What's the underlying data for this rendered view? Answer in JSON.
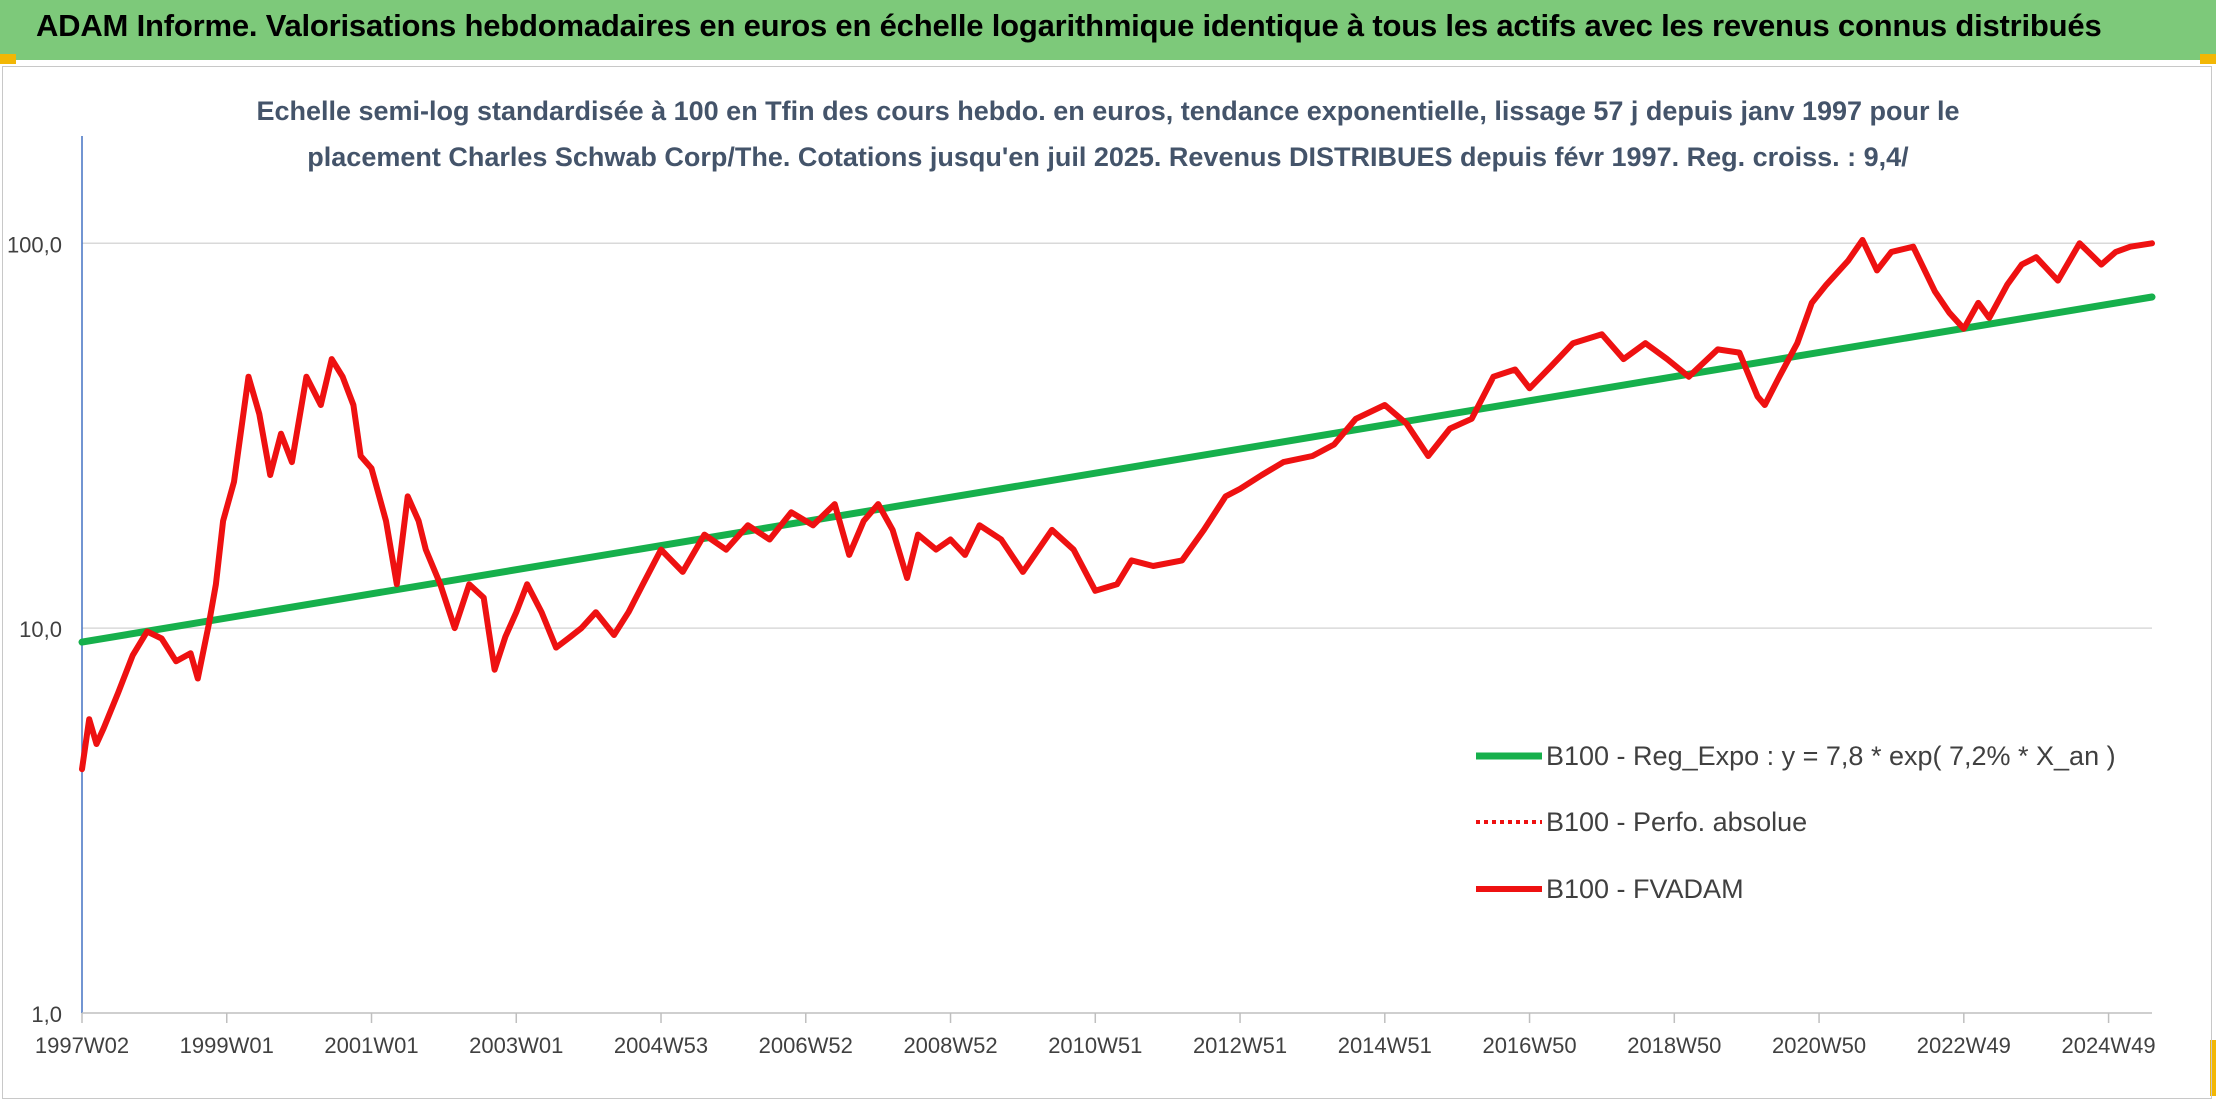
{
  "header": {
    "title": "ADAM Informe. Valorisations hebdomadaires en euros en échelle logarithmique identique à tous les actifs avec les revenus connus distribués"
  },
  "colors": {
    "banner": "#7dc97a",
    "accent_corner": "#f2b705",
    "regression": "#16b04c",
    "series": "#ee1111",
    "subtitle": "#44546a"
  },
  "chart_data": {
    "type": "line",
    "title_line1": "Echelle semi-log standardisée à 100 en Tfin des cours hebdo. en euros, tendance exponentielle, lissage 57 j depuis janv 1997 pour le",
    "title_line2": "placement Charles Schwab Corp/The. Cotations jusqu'en juil 2025. Revenus DISTRIBUES depuis févr 1997. Reg. croiss. : 9,4/",
    "y_scale": "log",
    "ylim": [
      1,
      190
    ],
    "y_ticks": [
      1,
      10,
      100
    ],
    "y_tick_labels": [
      "1,0",
      "10,0",
      "100,0"
    ],
    "xlim": [
      1997.0,
      2025.6
    ],
    "x_tick_labels": [
      "1997W02",
      "1999W01",
      "2001W01",
      "2003W01",
      "2004W53",
      "2006W52",
      "2008W52",
      "2010W51",
      "2012W51",
      "2014W51",
      "2016W50",
      "2018W50",
      "2020W50",
      "2022W49",
      "2024W49"
    ],
    "x_tick_positions": [
      1997.0,
      1999.0,
      2001.0,
      2003.0,
      2005.0,
      2007.0,
      2009.0,
      2011.0,
      2013.0,
      2015.0,
      2017.0,
      2019.0,
      2021.0,
      2023.0,
      2025.0
    ],
    "grid": "horizontal",
    "legend_position": "bottom-right",
    "series": [
      {
        "name": "B100 - Reg_Expo : y = 7,8 * exp( 7,2% *  X_an )",
        "style": "solid-green",
        "x": [
          1997.0,
          2025.6
        ],
        "y": [
          9.2,
          72.5
        ]
      },
      {
        "name": "B100 - Perfo. absolue",
        "style": "dotted-red",
        "x": [],
        "y": []
      },
      {
        "name": "B100 - FVADAM",
        "style": "solid-red",
        "x": [
          1997.0,
          1997.1,
          1997.2,
          1997.3,
          1997.5,
          1997.7,
          1997.9,
          1998.1,
          1998.3,
          1998.5,
          1998.6,
          1998.75,
          1998.85,
          1998.95,
          1999.1,
          1999.3,
          1999.45,
          1999.6,
          1999.75,
          1999.9,
          2000.1,
          2000.3,
          2000.45,
          2000.6,
          2000.75,
          2000.85,
          2001.0,
          2001.2,
          2001.35,
          2001.5,
          2001.65,
          2001.75,
          2001.95,
          2002.15,
          2002.35,
          2002.55,
          2002.7,
          2002.85,
          2003.0,
          2003.15,
          2003.35,
          2003.55,
          2003.75,
          2003.9,
          2004.1,
          2004.35,
          2004.55,
          2004.75,
          2005.0,
          2005.3,
          2005.6,
          2005.9,
          2006.2,
          2006.5,
          2006.8,
          2007.1,
          2007.4,
          2007.6,
          2007.8,
          2008.0,
          2008.2,
          2008.4,
          2008.55,
          2008.8,
          2009.0,
          2009.2,
          2009.4,
          2009.7,
          2010.0,
          2010.4,
          2010.7,
          2011.0,
          2011.3,
          2011.5,
          2011.8,
          2012.2,
          2012.5,
          2012.8,
          2013.0,
          2013.3,
          2013.6,
          2014.0,
          2014.3,
          2014.6,
          2015.0,
          2015.3,
          2015.6,
          2015.9,
          2016.2,
          2016.5,
          2016.8,
          2017.0,
          2017.3,
          2017.6,
          2018.0,
          2018.3,
          2018.6,
          2018.9,
          2019.2,
          2019.6,
          2019.9,
          2020.15,
          2020.25,
          2020.45,
          2020.7,
          2020.9,
          2021.1,
          2021.4,
          2021.6,
          2021.8,
          2022.0,
          2022.3,
          2022.6,
          2022.8,
          2023.0,
          2023.2,
          2023.35,
          2023.6,
          2023.8,
          2024.0,
          2024.3,
          2024.6,
          2024.9,
          2025.1,
          2025.3,
          2025.6
        ],
        "y": [
          4.3,
          5.8,
          5.0,
          5.5,
          6.8,
          8.5,
          9.8,
          9.4,
          8.2,
          8.6,
          7.4,
          10.2,
          13.0,
          19.0,
          24.0,
          45.0,
          36.0,
          25.0,
          32.0,
          27.0,
          45.0,
          38.0,
          50.0,
          45.0,
          38.0,
          28.0,
          26.0,
          19.0,
          13.0,
          22.0,
          19.0,
          16.0,
          13.0,
          10.0,
          13.0,
          12.0,
          7.8,
          9.5,
          11.0,
          13.0,
          11.0,
          8.9,
          9.5,
          10.0,
          11.0,
          9.6,
          11.0,
          13.0,
          16.0,
          14.0,
          17.5,
          16.0,
          18.5,
          17.0,
          20.0,
          18.5,
          21.0,
          15.5,
          19.0,
          21.0,
          18.0,
          13.5,
          17.5,
          16.0,
          17.0,
          15.5,
          18.5,
          17.0,
          14.0,
          18.0,
          16.0,
          12.5,
          13.0,
          15.0,
          14.5,
          15.0,
          18.0,
          22.0,
          23.0,
          25.0,
          27.0,
          28.0,
          30.0,
          35.0,
          38.0,
          34.0,
          28.0,
          33.0,
          35.0,
          45.0,
          47.0,
          42.0,
          48.0,
          55.0,
          58.0,
          50.0,
          55.0,
          50.0,
          45.0,
          53.0,
          52.0,
          40.0,
          38.0,
          45.0,
          55.0,
          70.0,
          78.0,
          90.0,
          102.0,
          85.0,
          95.0,
          98.0,
          75.0,
          66.0,
          60.0,
          70.0,
          64.0,
          78.0,
          88.0,
          92.0,
          80.0,
          100.0,
          88.0,
          95.0,
          98.0,
          100.0
        ]
      }
    ]
  }
}
